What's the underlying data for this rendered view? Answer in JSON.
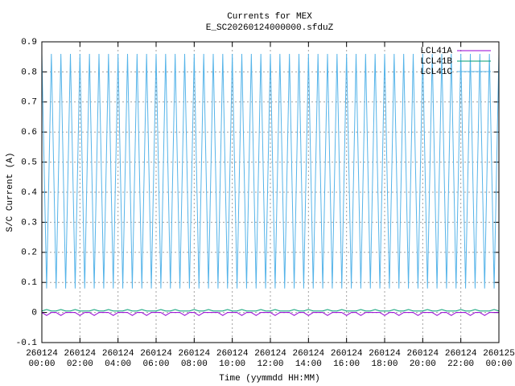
{
  "chart_data": {
    "type": "line",
    "title": "Currents for MEX",
    "subtitle": "E_SC20260124000000.sfduZ",
    "xlabel": "Time (yymmdd HH:MM)",
    "ylabel": "S/C Current (A)",
    "xlim": [
      0,
      24
    ],
    "ylim": [
      -0.1,
      0.9
    ],
    "xticks": [
      {
        "value": 0,
        "label": "260124 00:00"
      },
      {
        "value": 2,
        "label": "260124 02:00"
      },
      {
        "value": 4,
        "label": "260124 04:00"
      },
      {
        "value": 6,
        "label": "260124 06:00"
      },
      {
        "value": 8,
        "label": "260124 08:00"
      },
      {
        "value": 10,
        "label": "260124 10:00"
      },
      {
        "value": 12,
        "label": "260124 12:00"
      },
      {
        "value": 14,
        "label": "260124 14:00"
      },
      {
        "value": 16,
        "label": "260124 16:00"
      },
      {
        "value": 18,
        "label": "260124 18:00"
      },
      {
        "value": 20,
        "label": "260124 20:00"
      },
      {
        "value": 22,
        "label": "260124 22:00"
      },
      {
        "value": 24,
        "label": "260125 00:00"
      }
    ],
    "yticks": [
      0.9,
      0.8,
      0.7,
      0.6,
      0.5,
      0.4,
      0.3,
      0.2,
      0.1,
      0,
      -0.1
    ],
    "grid": true,
    "legend": "top-right",
    "x": [
      0,
      0.25,
      0.5,
      0.75,
      1,
      1.25,
      1.5,
      1.75,
      2,
      2.25,
      2.5,
      2.75,
      3,
      3.25,
      3.5,
      3.75,
      4,
      4.25,
      4.5,
      4.75,
      5,
      5.25,
      5.5,
      5.75,
      6,
      6.25,
      6.5,
      6.75,
      7,
      7.25,
      7.5,
      7.75,
      8,
      8.25,
      8.5,
      8.75,
      9,
      9.25,
      9.5,
      9.75,
      10,
      10.25,
      10.5,
      10.75,
      11,
      11.25,
      11.5,
      11.75,
      12,
      12.25,
      12.5,
      12.75,
      13,
      13.25,
      13.5,
      13.75,
      14,
      14.25,
      14.5,
      14.75,
      15,
      15.25,
      15.5,
      15.75,
      16,
      16.25,
      16.5,
      16.75,
      17,
      17.25,
      17.5,
      17.75,
      18,
      18.25,
      18.5,
      18.75,
      19,
      19.25,
      19.5,
      19.75,
      20,
      20.25,
      20.5,
      20.75,
      21,
      21.25,
      21.5,
      21.75,
      22,
      22.25,
      22.5,
      22.75,
      23,
      23.25,
      23.5,
      23.75,
      24
    ],
    "series": [
      {
        "name": "LCL41A",
        "color": "#9400d3",
        "values": [
          0,
          -0.01,
          0,
          0,
          -0.01,
          0,
          0,
          0,
          -0.01,
          0,
          0,
          -0.01,
          0,
          0,
          0,
          -0.01,
          0,
          0,
          0,
          -0.01,
          0,
          0,
          -0.01,
          0,
          0,
          0,
          -0.01,
          0,
          0,
          0,
          -0.01,
          0,
          0,
          -0.01,
          0,
          0,
          0,
          0,
          -0.01,
          0,
          0,
          0,
          -0.01,
          0,
          0,
          -0.01,
          0,
          0,
          0,
          -0.01,
          0,
          0,
          0,
          -0.01,
          0,
          0,
          -0.01,
          0,
          0,
          0,
          -0.01,
          0,
          0,
          0,
          -0.01,
          0,
          0,
          -0.01,
          0,
          0,
          0,
          0,
          -0.01,
          0,
          0,
          -0.01,
          0,
          0,
          0,
          -0.01,
          0,
          0,
          0,
          -0.01,
          0,
          0,
          -0.01,
          0,
          0,
          0,
          -0.01,
          0,
          0,
          -0.01,
          0,
          0,
          0
        ]
      },
      {
        "name": "LCL41B",
        "color": "#009e73",
        "values": [
          0.005,
          0.01,
          0.005,
          0.005,
          0.01,
          0.005,
          0.005,
          0.01,
          0.005,
          0.005,
          0.005,
          0.01,
          0.005,
          0.005,
          0.01,
          0.005,
          0.005,
          0.005,
          0.01,
          0.005,
          0.005,
          0.01,
          0.005,
          0.005,
          0.005,
          0.01,
          0.005,
          0.005,
          0.01,
          0.005,
          0.005,
          0.005,
          0.01,
          0.005,
          0.005,
          0.01,
          0.005,
          0.005,
          0.005,
          0.01,
          0.005,
          0.005,
          0.01,
          0.005,
          0.005,
          0.005,
          0.01,
          0.005,
          0.005,
          0.01,
          0.005,
          0.005,
          0.005,
          0.01,
          0.005,
          0.005,
          0.01,
          0.005,
          0.005,
          0.005,
          0.01,
          0.005,
          0.005,
          0.01,
          0.005,
          0.005,
          0.005,
          0.01,
          0.005,
          0.005,
          0.01,
          0.005,
          0.005,
          0.005,
          0.01,
          0.005,
          0.005,
          0.01,
          0.005,
          0.005,
          0.005,
          0.01,
          0.005,
          0.005,
          0.01,
          0.005,
          0.005,
          0.005,
          0.01,
          0.005,
          0.005,
          0.01,
          0.005,
          0.005,
          0.005,
          0.01,
          0.005
        ]
      },
      {
        "name": "LCL41C",
        "color": "#56b4e9",
        "values": [
          0.86,
          0.08,
          0.86,
          0.08,
          0.86,
          0.08,
          0.86,
          0.08,
          0.86,
          0.08,
          0.86,
          0.08,
          0.86,
          0.08,
          0.86,
          0.08,
          0.86,
          0.08,
          0.86,
          0.08,
          0.86,
          0.08,
          0.86,
          0.08,
          0.86,
          0.08,
          0.86,
          0.08,
          0.86,
          0.08,
          0.86,
          0.08,
          0.86,
          0.08,
          0.86,
          0.08,
          0.86,
          0.08,
          0.86,
          0.08,
          0.86,
          0.08,
          0.86,
          0.08,
          0.86,
          0.08,
          0.86,
          0.08,
          0.86,
          0.08,
          0.86,
          0.08,
          0.86,
          0.08,
          0.86,
          0.08,
          0.86,
          0.08,
          0.86,
          0.08,
          0.86,
          0.08,
          0.86,
          0.08,
          0.86,
          0.08,
          0.86,
          0.08,
          0.86,
          0.08,
          0.86,
          0.08,
          0.86,
          0.08,
          0.86,
          0.08,
          0.86,
          0.08,
          0.86,
          0.08,
          0.86,
          0.08,
          0.86,
          0.08,
          0.86,
          0.08,
          0.86,
          0.08,
          0.86,
          0.08,
          0.86,
          0.08,
          0.86,
          0.08,
          0.86,
          0.08,
          0.86
        ]
      }
    ]
  }
}
